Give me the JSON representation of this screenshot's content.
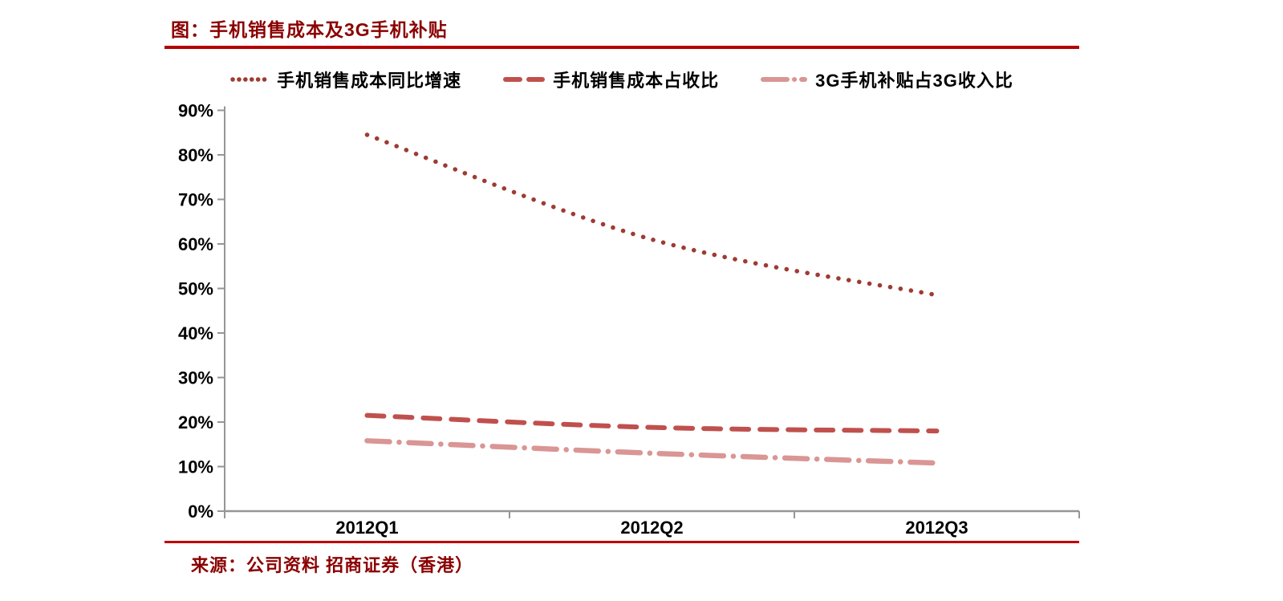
{
  "page": {
    "title": "图：手机销售成本及3G手机补贴",
    "source": "来源：公司资料 招商证券（香港）"
  },
  "chart_data": {
    "type": "line",
    "title": "图：手机销售成本及3G手机补贴",
    "categories": [
      "2012Q1",
      "2012Q2",
      "2012Q3"
    ],
    "series": [
      {
        "name": "手机销售成本同比增速",
        "values": [
          84.5,
          61,
          48.5
        ],
        "color": "#9E3B32",
        "dash": "dotted"
      },
      {
        "name": "手机销售成本占收比",
        "values": [
          21.5,
          18.8,
          18
        ],
        "color": "#C0504D",
        "dash": "dashed"
      },
      {
        "name": "3G手机补贴占3G收入比",
        "values": [
          15.8,
          13,
          10.8
        ],
        "color": "#D99694",
        "dash": "dash-dot"
      }
    ],
    "xlabel": "",
    "ylabel": "",
    "ylim": [
      0,
      90
    ],
    "y_tick_step": 10,
    "y_ticks": [
      "0%",
      "10%",
      "20%",
      "30%",
      "40%",
      "50%",
      "60%",
      "70%",
      "80%",
      "90%"
    ],
    "grid": false,
    "smooth": true,
    "legend_position": "top"
  },
  "colors": {
    "title_text": "#8B0000",
    "rule": "#B40000",
    "axis": "#969696",
    "tick_label": "#000000"
  }
}
